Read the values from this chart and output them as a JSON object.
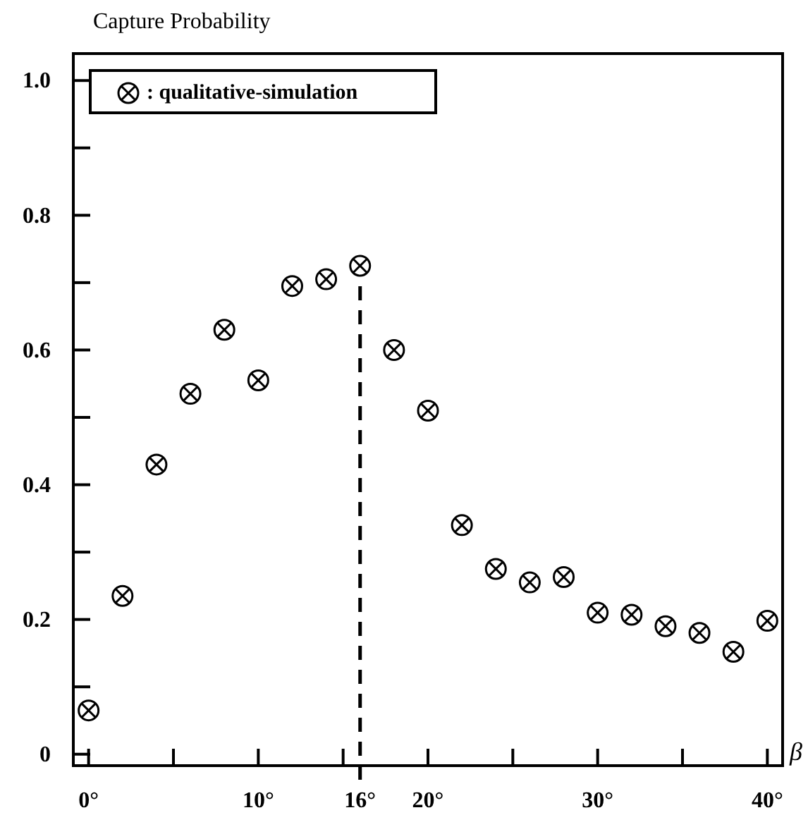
{
  "chart_data": {
    "type": "scatter",
    "title": "Capture Probability",
    "xlabel": "β",
    "x": [
      0,
      2,
      4,
      6,
      8,
      10,
      12,
      14,
      16,
      18,
      20,
      22,
      24,
      26,
      28,
      30,
      32,
      34,
      36,
      38,
      40
    ],
    "series": [
      {
        "name": ": qualitative-simulation",
        "color": "#000000",
        "values": [
          0.065,
          0.235,
          0.43,
          0.535,
          0.63,
          0.555,
          0.695,
          0.705,
          0.725,
          0.6,
          0.51,
          0.34,
          0.275,
          0.255,
          0.263,
          0.21,
          0.207,
          0.19,
          0.18,
          0.152,
          0.198
        ]
      }
    ],
    "xlim": [
      -0.9,
      40.9
    ],
    "ylim": [
      -0.017,
      1.04
    ],
    "xticks": [
      {
        "value": 0,
        "label": "0°"
      },
      {
        "value": 5,
        "label": null
      },
      {
        "value": 10,
        "label": "10°"
      },
      {
        "value": 15,
        "label": null
      },
      {
        "value": 16,
        "label": "16°"
      },
      {
        "value": 20,
        "label": "20°"
      },
      {
        "value": 25,
        "label": null
      },
      {
        "value": 30,
        "label": "30°"
      },
      {
        "value": 35,
        "label": null
      },
      {
        "value": 40,
        "label": "40°"
      }
    ],
    "yticks": [
      0,
      {
        "value": 0.1,
        "label": null
      },
      0.2,
      {
        "value": 0.3,
        "label": null
      },
      0.4,
      {
        "value": 0.5,
        "label": null
      },
      0.6,
      {
        "value": 0.7,
        "label": null
      },
      0.8,
      {
        "value": 0.9,
        "label": null
      },
      {
        "value": 1,
        "label": "1.0"
      }
    ],
    "ref_lines": [
      {
        "axis": "x",
        "value": 16,
        "line_style": "dashed"
      }
    ],
    "marker": "circle",
    "legend": "top left",
    "grid": false
  }
}
